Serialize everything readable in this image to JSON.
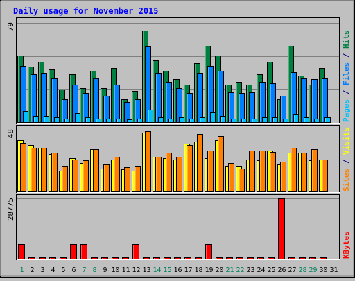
{
  "chart_data": {
    "type": "bar",
    "title": "Daily usage for November 2015",
    "days": [
      "1",
      "2",
      "3",
      "4",
      "5",
      "6",
      "7",
      "8",
      "9",
      "10",
      "11",
      "12",
      "13",
      "14",
      "15",
      "16",
      "17",
      "18",
      "19",
      "20",
      "21",
      "22",
      "23",
      "24",
      "25",
      "26",
      "27",
      "28",
      "29",
      "30",
      "31"
    ],
    "weekend_days": [
      "1",
      "7",
      "8",
      "14",
      "15",
      "21",
      "22",
      "28",
      "29"
    ],
    "panels": [
      {
        "name": "hits-files-pages",
        "ylabel_parts": [
          {
            "text": "Pages",
            "color": "#00c0ff"
          },
          {
            "text": " / ",
            "color": "#000080"
          },
          {
            "text": "Files",
            "color": "#0080ff"
          },
          {
            "text": " / ",
            "color": "#000080"
          },
          {
            "text": "Hits",
            "color": "#008040"
          }
        ],
        "ymax_label": "79",
        "ymax": 79,
        "gridlines": 3,
        "series": [
          {
            "name": "Hits",
            "color": "#008040",
            "values": [
              53,
              44,
              48,
              42,
              26,
              38,
              27,
              41,
              27,
              43,
              18,
              25,
              73,
              49,
              41,
              34,
              30,
              47,
              61,
              53,
              30,
              32,
              30,
              38,
              48,
              18,
              61,
              37,
              30,
              43,
              null
            ]
          },
          {
            "name": "Files",
            "color": "#0080ff",
            "values": [
              45,
              38,
              39,
              35,
              18,
              30,
              23,
              35,
              21,
              30,
              16,
              18,
              60,
              39,
              32,
              27,
              23,
              39,
              45,
              41,
              24,
              23,
              24,
              32,
              31,
              21,
              40,
              35,
              34,
              35,
              null
            ]
          },
          {
            "name": "Pages",
            "color": "#00c0ff",
            "values": [
              9,
              5,
              5,
              4,
              3,
              7,
              4,
              3,
              3,
              3,
              2,
              3,
              10,
              4,
              3,
              4,
              3,
              4,
              8,
              5,
              3,
              3,
              3,
              4,
              4,
              3,
              6,
              4,
              3,
              4,
              null
            ]
          }
        ]
      },
      {
        "name": "visits-sites",
        "ylabel_parts": [
          {
            "text": "Sites",
            "color": "#ff8000"
          },
          {
            "text": " / ",
            "color": "#000080"
          },
          {
            "text": "Visits",
            "color": "#ffff00"
          }
        ],
        "ymax_label": "48",
        "ymax": 48,
        "gridlines": 3,
        "series": [
          {
            "name": "Visits",
            "color": "#ffff00",
            "values": [
              40,
              36,
              34,
              29,
              16,
              26,
              22,
              33,
              18,
              25,
              17,
              16,
              46,
              27,
              26,
              25,
              37,
              39,
              26,
              40,
              20,
              20,
              25,
              24,
              32,
              21,
              30,
              30,
              24,
              25,
              null
            ]
          },
          {
            "name": "Sites",
            "color": "#ff8000",
            "values": [
              38,
              34,
              34,
              30,
              20,
              25,
              24,
              33,
              21,
              27,
              19,
              20,
              47,
              27,
              30,
              27,
              36,
              45,
              32,
              43,
              22,
              18,
              32,
              32,
              31,
              23,
              34,
              30,
              33,
              25,
              null
            ]
          }
        ]
      },
      {
        "name": "kbytes",
        "ylabel_parts": [
          {
            "text": "KBytes",
            "color": "#ff0000"
          }
        ],
        "ymax_label": "28775",
        "ymax": 28775,
        "gridlines": 3,
        "series": [
          {
            "name": "KBytes",
            "color": "#ff0000",
            "values": [
              6800,
              0,
              0,
              0,
              0,
              6800,
              6800,
              0,
              0,
              0,
              0,
              6800,
              0,
              0,
              0,
              0,
              0,
              0,
              6800,
              0,
              0,
              0,
              0,
              0,
              0,
              28775,
              0,
              0,
              0,
              0,
              null
            ]
          }
        ]
      }
    ]
  },
  "colors": {
    "background": "#c0c0c0",
    "title": "#0000ff",
    "axis_label": "#000000",
    "weekday": "#000000",
    "weekend": "#00805c",
    "grid": "#808080"
  }
}
